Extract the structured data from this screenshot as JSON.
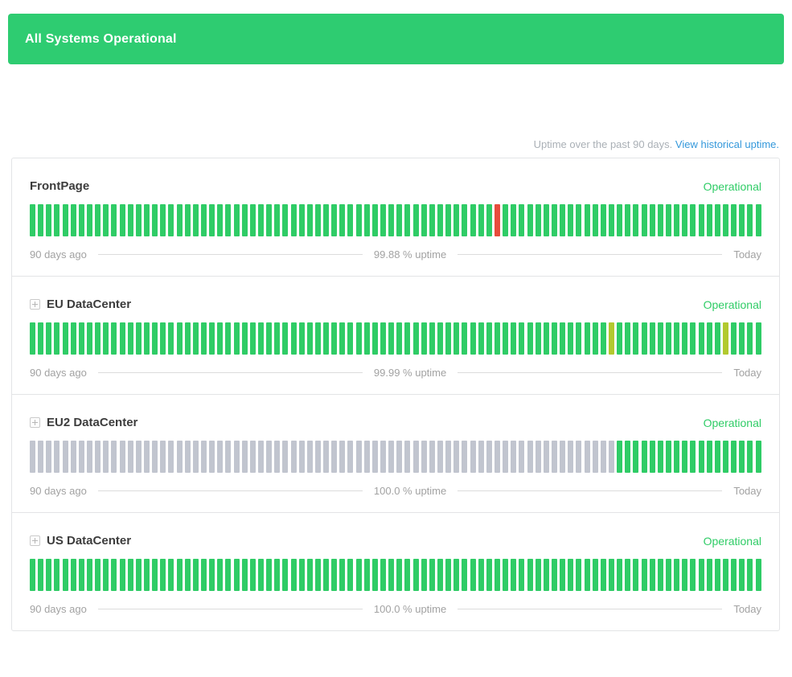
{
  "banner": {
    "text": "All Systems Operational",
    "bg": "#2ecc71"
  },
  "uptime_header": {
    "text": "Uptime over the past 90 days.",
    "link_text": "View historical uptime."
  },
  "bar_colors": {
    "green": "#2fcc66",
    "red": "#e74c3c",
    "lime": "#b2c92e",
    "gray": "#c1c5cf"
  },
  "legend": {
    "left_label": "90 days ago",
    "right_label": "Today"
  },
  "services": [
    {
      "name": "FrontPage",
      "expandable": false,
      "status": "Operational",
      "uptime_label": "99.88 % uptime",
      "left_label": "90 days ago",
      "right_label": "Today",
      "total_bars": 90,
      "segments": [
        {
          "color": "green",
          "count": 57
        },
        {
          "color": "red",
          "count": 1
        },
        {
          "color": "green",
          "count": 32
        }
      ]
    },
    {
      "name": "EU DataCenter",
      "expandable": true,
      "status": "Operational",
      "uptime_label": "99.99 % uptime",
      "left_label": "90 days ago",
      "right_label": "Today",
      "total_bars": 90,
      "segments": [
        {
          "color": "green",
          "count": 71
        },
        {
          "color": "lime",
          "count": 1
        },
        {
          "color": "green",
          "count": 13
        },
        {
          "color": "lime",
          "count": 1
        },
        {
          "color": "green",
          "count": 4
        }
      ]
    },
    {
      "name": "EU2 DataCenter",
      "expandable": true,
      "status": "Operational",
      "uptime_label": "100.0 % uptime",
      "left_label": "90 days ago",
      "right_label": "Today",
      "total_bars": 90,
      "segments": [
        {
          "color": "gray",
          "count": 72
        },
        {
          "color": "green",
          "count": 18
        }
      ]
    },
    {
      "name": "US DataCenter",
      "expandable": true,
      "status": "Operational",
      "uptime_label": "100.0 % uptime",
      "left_label": "90 days ago",
      "right_label": "Today",
      "total_bars": 90,
      "segments": [
        {
          "color": "green",
          "count": 90
        }
      ]
    }
  ]
}
